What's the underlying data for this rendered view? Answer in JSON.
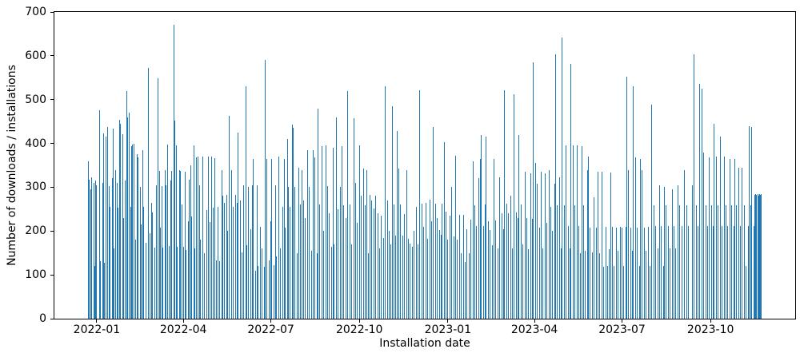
{
  "chart_data": {
    "type": "bar",
    "title": "",
    "xlabel": "Installation date",
    "ylabel": "Number of downloads / installations",
    "bar_color": "#1f77b4",
    "grid": false,
    "legend": false,
    "ylim": [
      0,
      700
    ],
    "y_ticks": [
      0,
      100,
      200,
      300,
      400,
      500,
      600,
      700
    ],
    "x_start_date": "2021-12-23",
    "xlim_days": [
      -35,
      735
    ],
    "x_ticks": [
      {
        "day": 9,
        "label": "2022-01"
      },
      {
        "day": 99,
        "label": "2022-04"
      },
      {
        "day": 190,
        "label": "2022-07"
      },
      {
        "day": 282,
        "label": "2022-10"
      },
      {
        "day": 374,
        "label": "2023-01"
      },
      {
        "day": 464,
        "label": "2023-04"
      },
      {
        "day": 555,
        "label": "2023-07"
      },
      {
        "day": 647,
        "label": "2023-10"
      }
    ],
    "bars_format": "[days_since_start_date, value]",
    "bars": [
      [
        0,
        360
      ],
      [
        1,
        318
      ],
      [
        3,
        295
      ],
      [
        4,
        322
      ],
      [
        6,
        310
      ],
      [
        7,
        120
      ],
      [
        8,
        315
      ],
      [
        9,
        305
      ],
      [
        12,
        475
      ],
      [
        13,
        132
      ],
      [
        15,
        310
      ],
      [
        16,
        423
      ],
      [
        17,
        127
      ],
      [
        19,
        415
      ],
      [
        20,
        438
      ],
      [
        22,
        302
      ],
      [
        23,
        255
      ],
      [
        25,
        320
      ],
      [
        26,
        433
      ],
      [
        27,
        160
      ],
      [
        29,
        340
      ],
      [
        30,
        310
      ],
      [
        31,
        253
      ],
      [
        33,
        454
      ],
      [
        34,
        445
      ],
      [
        36,
        422
      ],
      [
        37,
        230
      ],
      [
        39,
        315
      ],
      [
        40,
        520
      ],
      [
        41,
        460
      ],
      [
        43,
        470
      ],
      [
        44,
        255
      ],
      [
        45,
        393
      ],
      [
        46,
        398
      ],
      [
        48,
        400
      ],
      [
        49,
        180
      ],
      [
        51,
        375
      ],
      [
        52,
        368
      ],
      [
        54,
        300
      ],
      [
        55,
        215
      ],
      [
        57,
        385
      ],
      [
        58,
        255
      ],
      [
        60,
        173
      ],
      [
        63,
        573
      ],
      [
        64,
        195
      ],
      [
        66,
        265
      ],
      [
        67,
        242
      ],
      [
        69,
        162
      ],
      [
        71,
        305
      ],
      [
        73,
        548
      ],
      [
        74,
        338
      ],
      [
        75,
        208
      ],
      [
        77,
        302
      ],
      [
        78,
        162
      ],
      [
        80,
        340
      ],
      [
        81,
        305
      ],
      [
        83,
        397
      ],
      [
        84,
        166
      ],
      [
        86,
        315
      ],
      [
        87,
        338
      ],
      [
        89,
        670
      ],
      [
        90,
        452
      ],
      [
        92,
        395
      ],
      [
        93,
        165
      ],
      [
        95,
        340
      ],
      [
        96,
        338
      ],
      [
        98,
        260
      ],
      [
        99,
        165
      ],
      [
        101,
        336
      ],
      [
        102,
        157
      ],
      [
        104,
        222
      ],
      [
        105,
        318
      ],
      [
        107,
        350
      ],
      [
        108,
        233
      ],
      [
        110,
        395
      ],
      [
        111,
        160
      ],
      [
        113,
        368
      ],
      [
        114,
        370
      ],
      [
        116,
        305
      ],
      [
        117,
        180
      ],
      [
        119,
        370
      ],
      [
        121,
        150
      ],
      [
        123,
        248
      ],
      [
        125,
        370
      ],
      [
        127,
        220
      ],
      [
        128,
        370
      ],
      [
        130,
        253
      ],
      [
        132,
        367
      ],
      [
        133,
        133
      ],
      [
        135,
        255
      ],
      [
        137,
        132
      ],
      [
        139,
        340
      ],
      [
        140,
        280
      ],
      [
        142,
        265
      ],
      [
        144,
        282
      ],
      [
        145,
        200
      ],
      [
        147,
        463
      ],
      [
        149,
        340
      ],
      [
        151,
        255
      ],
      [
        153,
        283
      ],
      [
        155,
        265
      ],
      [
        156,
        425
      ],
      [
        158,
        270
      ],
      [
        160,
        152
      ],
      [
        162,
        305
      ],
      [
        164,
        530
      ],
      [
        165,
        168
      ],
      [
        167,
        300
      ],
      [
        169,
        205
      ],
      [
        171,
        305
      ],
      [
        172,
        365
      ],
      [
        174,
        110
      ],
      [
        176,
        305
      ],
      [
        177,
        120
      ],
      [
        179,
        210
      ],
      [
        181,
        160
      ],
      [
        183,
        118
      ],
      [
        184,
        590
      ],
      [
        186,
        365
      ],
      [
        188,
        134
      ],
      [
        190,
        222
      ],
      [
        191,
        365
      ],
      [
        193,
        122
      ],
      [
        195,
        305
      ],
      [
        196,
        142
      ],
      [
        198,
        370
      ],
      [
        200,
        160
      ],
      [
        202,
        255
      ],
      [
        204,
        365
      ],
      [
        205,
        208
      ],
      [
        207,
        410
      ],
      [
        208,
        300
      ],
      [
        210,
        255
      ],
      [
        212,
        443
      ],
      [
        213,
        435
      ],
      [
        215,
        300
      ],
      [
        217,
        150
      ],
      [
        219,
        345
      ],
      [
        221,
        260
      ],
      [
        222,
        340
      ],
      [
        224,
        270
      ],
      [
        226,
        230
      ],
      [
        228,
        385
      ],
      [
        230,
        300
      ],
      [
        232,
        155
      ],
      [
        234,
        385
      ],
      [
        236,
        368
      ],
      [
        238,
        150
      ],
      [
        239,
        480
      ],
      [
        241,
        260
      ],
      [
        243,
        393
      ],
      [
        245,
        200
      ],
      [
        247,
        395
      ],
      [
        249,
        302
      ],
      [
        251,
        240
      ],
      [
        253,
        165
      ],
      [
        255,
        390
      ],
      [
        256,
        170
      ],
      [
        258,
        460
      ],
      [
        260,
        250
      ],
      [
        262,
        300
      ],
      [
        264,
        393
      ],
      [
        266,
        258
      ],
      [
        268,
        230
      ],
      [
        270,
        520
      ],
      [
        272,
        260
      ],
      [
        274,
        170
      ],
      [
        276,
        458
      ],
      [
        278,
        310
      ],
      [
        280,
        218
      ],
      [
        282,
        395
      ],
      [
        284,
        280
      ],
      [
        286,
        342
      ],
      [
        288,
        258
      ],
      [
        290,
        340
      ],
      [
        291,
        150
      ],
      [
        293,
        282
      ],
      [
        295,
        270
      ],
      [
        297,
        252
      ],
      [
        299,
        280
      ],
      [
        301,
        240
      ],
      [
        303,
        160
      ],
      [
        305,
        235
      ],
      [
        307,
        185
      ],
      [
        309,
        530
      ],
      [
        311,
        270
      ],
      [
        313,
        200
      ],
      [
        315,
        170
      ],
      [
        316,
        485
      ],
      [
        318,
        260
      ],
      [
        320,
        190
      ],
      [
        321,
        428
      ],
      [
        323,
        342
      ],
      [
        325,
        260
      ],
      [
        327,
        190
      ],
      [
        329,
        238
      ],
      [
        331,
        340
      ],
      [
        333,
        182
      ],
      [
        335,
        172
      ],
      [
        337,
        165
      ],
      [
        339,
        200
      ],
      [
        341,
        255
      ],
      [
        343,
        170
      ],
      [
        345,
        522
      ],
      [
        347,
        262
      ],
      [
        349,
        210
      ],
      [
        351,
        265
      ],
      [
        353,
        182
      ],
      [
        355,
        272
      ],
      [
        357,
        222
      ],
      [
        359,
        437
      ],
      [
        361,
        262
      ],
      [
        363,
        230
      ],
      [
        365,
        202
      ],
      [
        367,
        192
      ],
      [
        368,
        262
      ],
      [
        370,
        403
      ],
      [
        372,
        245
      ],
      [
        374,
        180
      ],
      [
        376,
        235
      ],
      [
        378,
        300
      ],
      [
        380,
        188
      ],
      [
        382,
        371
      ],
      [
        384,
        180
      ],
      [
        386,
        237
      ],
      [
        388,
        150
      ],
      [
        390,
        237
      ],
      [
        392,
        130
      ],
      [
        394,
        205
      ],
      [
        396,
        150
      ],
      [
        398,
        226
      ],
      [
        400,
        360
      ],
      [
        402,
        258
      ],
      [
        404,
        212
      ],
      [
        406,
        320
      ],
      [
        408,
        365
      ],
      [
        409,
        420
      ],
      [
        411,
        212
      ],
      [
        413,
        260
      ],
      [
        414,
        415
      ],
      [
        416,
        222
      ],
      [
        418,
        202
      ],
      [
        420,
        168
      ],
      [
        422,
        365
      ],
      [
        424,
        225
      ],
      [
        426,
        160
      ],
      [
        428,
        322
      ],
      [
        430,
        240
      ],
      [
        432,
        205
      ],
      [
        433,
        522
      ],
      [
        435,
        262
      ],
      [
        437,
        240
      ],
      [
        439,
        280
      ],
      [
        441,
        160
      ],
      [
        443,
        512
      ],
      [
        445,
        242
      ],
      [
        447,
        230
      ],
      [
        448,
        420
      ],
      [
        450,
        260
      ],
      [
        452,
        170
      ],
      [
        454,
        335
      ],
      [
        456,
        230
      ],
      [
        458,
        158
      ],
      [
        460,
        332
      ],
      [
        462,
        228
      ],
      [
        463,
        585
      ],
      [
        465,
        355
      ],
      [
        467,
        308
      ],
      [
        469,
        208
      ],
      [
        471,
        335
      ],
      [
        473,
        160
      ],
      [
        475,
        332
      ],
      [
        477,
        218
      ],
      [
        479,
        340
      ],
      [
        481,
        255
      ],
      [
        483,
        200
      ],
      [
        485,
        308
      ],
      [
        486,
        603
      ],
      [
        488,
        258
      ],
      [
        490,
        322
      ],
      [
        492,
        160
      ],
      [
        493,
        642
      ],
      [
        495,
        258
      ],
      [
        497,
        395
      ],
      [
        499,
        212
      ],
      [
        501,
        160
      ],
      [
        502,
        581
      ],
      [
        504,
        396
      ],
      [
        506,
        258
      ],
      [
        508,
        396
      ],
      [
        510,
        212
      ],
      [
        512,
        150
      ],
      [
        513,
        393
      ],
      [
        515,
        258
      ],
      [
        517,
        155
      ],
      [
        519,
        340
      ],
      [
        520,
        370
      ],
      [
        522,
        208
      ],
      [
        524,
        152
      ],
      [
        526,
        277
      ],
      [
        528,
        208
      ],
      [
        530,
        335
      ],
      [
        532,
        150
      ],
      [
        534,
        335
      ],
      [
        536,
        118
      ],
      [
        538,
        210
      ],
      [
        540,
        120
      ],
      [
        542,
        158
      ],
      [
        543,
        333
      ],
      [
        545,
        210
      ],
      [
        547,
        120
      ],
      [
        549,
        208
      ],
      [
        551,
        155
      ],
      [
        553,
        210
      ],
      [
        555,
        208
      ],
      [
        557,
        120
      ],
      [
        559,
        210
      ],
      [
        560,
        552
      ],
      [
        562,
        340
      ],
      [
        564,
        208
      ],
      [
        566,
        155
      ],
      [
        567,
        530
      ],
      [
        569,
        368
      ],
      [
        571,
        208
      ],
      [
        573,
        120
      ],
      [
        574,
        365
      ],
      [
        576,
        340
      ],
      [
        578,
        208
      ],
      [
        580,
        155
      ],
      [
        582,
        210
      ],
      [
        584,
        120
      ],
      [
        586,
        489
      ],
      [
        588,
        258
      ],
      [
        590,
        212
      ],
      [
        592,
        160
      ],
      [
        594,
        305
      ],
      [
        596,
        212
      ],
      [
        598,
        120
      ],
      [
        599,
        300
      ],
      [
        601,
        258
      ],
      [
        603,
        212
      ],
      [
        605,
        160
      ],
      [
        607,
        295
      ],
      [
        609,
        212
      ],
      [
        611,
        160
      ],
      [
        613,
        305
      ],
      [
        615,
        258
      ],
      [
        617,
        212
      ],
      [
        620,
        340
      ],
      [
        622,
        258
      ],
      [
        624,
        212
      ],
      [
        628,
        305
      ],
      [
        630,
        603
      ],
      [
        632,
        258
      ],
      [
        634,
        212
      ],
      [
        636,
        536
      ],
      [
        638,
        525
      ],
      [
        640,
        380
      ],
      [
        642,
        258
      ],
      [
        644,
        212
      ],
      [
        646,
        368
      ],
      [
        648,
        258
      ],
      [
        650,
        212
      ],
      [
        651,
        445
      ],
      [
        653,
        370
      ],
      [
        655,
        258
      ],
      [
        657,
        415
      ],
      [
        659,
        212
      ],
      [
        661,
        370
      ],
      [
        663,
        258
      ],
      [
        665,
        212
      ],
      [
        667,
        365
      ],
      [
        669,
        258
      ],
      [
        671,
        212
      ],
      [
        672,
        365
      ],
      [
        674,
        258
      ],
      [
        676,
        345
      ],
      [
        678,
        212
      ],
      [
        680,
        345
      ],
      [
        682,
        258
      ],
      [
        684,
        120
      ],
      [
        686,
        212
      ],
      [
        687,
        440
      ],
      [
        689,
        258
      ],
      [
        690,
        438
      ],
      [
        692,
        212
      ],
      [
        693,
        283
      ],
      [
        694,
        285
      ],
      [
        695,
        282
      ],
      [
        696,
        284
      ],
      [
        697,
        280
      ],
      [
        698,
        285
      ],
      [
        699,
        283
      ],
      [
        700,
        285
      ]
    ]
  }
}
